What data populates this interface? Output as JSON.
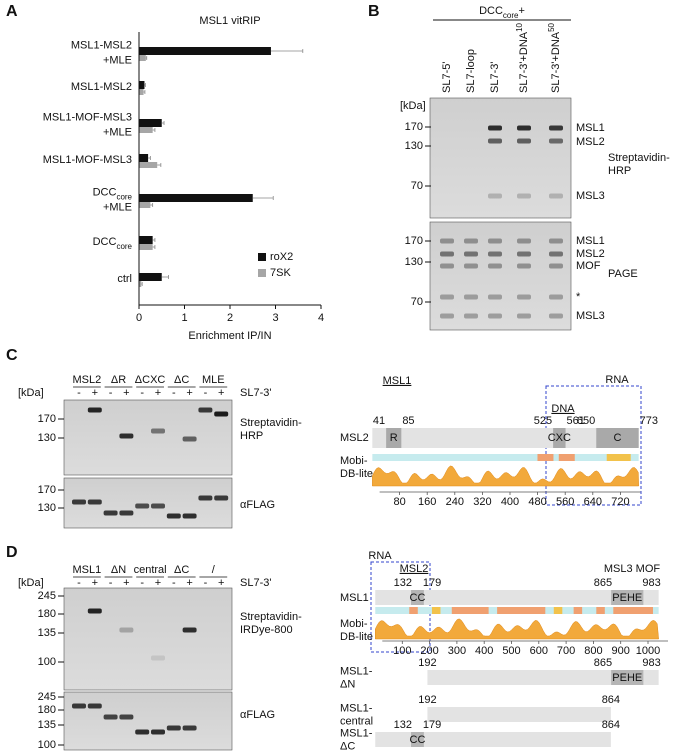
{
  "chart_data": {
    "type": "bar",
    "orientation": "horizontal",
    "title": "MSL1 vitRIP",
    "x_label": "Enrichment IP/IN",
    "categories": [
      [
        "MSL1-MSL2",
        "+MLE"
      ],
      [
        "MSL1-MSL2"
      ],
      [
        "MSL1-MOF-MSL3",
        "+MLE"
      ],
      [
        "MSL1-MOF-MSL3"
      ],
      [
        {
          "text": "DCC",
          "sub": "core"
        },
        "+MLE"
      ],
      [
        {
          "text": "DCC",
          "sub": "core"
        }
      ],
      [
        "ctrl"
      ]
    ],
    "series": [
      {
        "name": "roX2",
        "color": "#111111",
        "values": [
          2.9,
          0.12,
          0.5,
          0.2,
          2.5,
          0.3,
          0.5
        ],
        "errors": [
          0.7,
          0.02,
          0.05,
          0.05,
          0.45,
          0.05,
          0.15
        ]
      },
      {
        "name": "7SK",
        "color": "#a6a6a6",
        "values": [
          0.15,
          0.1,
          0.3,
          0.4,
          0.25,
          0.3,
          0.05
        ],
        "errors": [
          0.02,
          0.03,
          0.05,
          0.08,
          0.05,
          0.05,
          0.02
        ]
      }
    ],
    "xlim": [
      0,
      4
    ],
    "xticks": [
      0,
      1,
      2,
      3,
      4
    ],
    "legend": "lower right"
  },
  "panel_labels": [
    "A",
    "B",
    "C",
    "D"
  ],
  "panel_b": {
    "header": {
      "text": "DCC",
      "sub": "core",
      "suffix": "+"
    },
    "lanes": [
      [
        "SL7-5'"
      ],
      [
        "SL7-loop"
      ],
      [
        "SL7-3'"
      ],
      [
        "SL7-3'+DNA",
        "10"
      ],
      [
        "SL7-3'+DNA",
        "50"
      ]
    ],
    "unit": "[kDa]",
    "blots": [
      {
        "markers": [
          170,
          130,
          70
        ],
        "bands": [
          "MSL1",
          "MSL2",
          "MSL3"
        ],
        "detection": [
          "Streptavidin-",
          "HRP"
        ]
      },
      {
        "markers": [
          170,
          130,
          70
        ],
        "bands": [
          "MSL1",
          "MSL2",
          "MOF",
          "*",
          "MSL3"
        ],
        "detection": [
          "PAGE"
        ]
      }
    ]
  },
  "panel_c": {
    "groups": [
      "MSL2",
      "ΔR",
      "ΔCXC",
      "ΔC",
      "MLE"
    ],
    "lanes": [
      "-",
      "+",
      "-",
      "+",
      "-",
      "+",
      "-",
      "+",
      "-",
      "+"
    ],
    "condition": "SL7-3'",
    "unit": "[kDa]",
    "blots": [
      {
        "markers": [
          170,
          130
        ],
        "detection": [
          "Streptavidin-",
          "HRP"
        ]
      },
      {
        "markers": [
          170,
          130
        ],
        "detection": [
          "αFLAG"
        ]
      }
    ],
    "domains": {
      "annotations": {
        "rna": "RNA",
        "msl1": "MSL1",
        "dna": "DNA"
      },
      "protein": "MSL2",
      "positions": [
        41,
        85,
        525,
        561,
        650,
        773
      ],
      "boxes": [
        "R",
        "CXC",
        "C"
      ],
      "track": [
        "Mobi-",
        "DB-lite"
      ],
      "ticks": [
        80,
        160,
        240,
        320,
        400,
        480,
        560,
        640,
        720
      ]
    }
  },
  "panel_d": {
    "groups": [
      "MSL1",
      "ΔN",
      "central",
      "ΔC",
      "/"
    ],
    "lanes": [
      "-",
      "+",
      "-",
      "+",
      "-",
      "+",
      "-",
      "+",
      "-",
      "+"
    ],
    "condition": "SL7-3'",
    "unit": "[kDa]",
    "blots": [
      {
        "markers": [
          245,
          180,
          135,
          100
        ],
        "detection": [
          "Streptavidin-",
          "IRDye-800"
        ]
      },
      {
        "markers": [
          245,
          180,
          135,
          100
        ],
        "detection": [
          "αFLAG"
        ]
      }
    ],
    "domains": {
      "annotations": {
        "rna": "RNA",
        "msl2": "MSL2",
        "msl3_mof": "MSL3 MOF"
      },
      "track": [
        "Mobi-",
        "DB-lite"
      ],
      "ticks": [
        100,
        200,
        300,
        400,
        500,
        600,
        700,
        800,
        900,
        1000
      ],
      "constructs": [
        {
          "name": [
            "MSL1"
          ],
          "positions": [
            132,
            179,
            865,
            983
          ],
          "boxes": [
            "CC",
            "PEHE"
          ]
        },
        {
          "name": [
            "MSL1-",
            "ΔN"
          ],
          "positions": [
            192,
            865,
            983
          ],
          "boxes": [
            "PEHE"
          ]
        },
        {
          "name": [
            "MSL1-",
            "central"
          ],
          "positions": [
            192,
            864
          ],
          "boxes": []
        },
        {
          "name": [
            "MSL1-",
            "ΔC"
          ],
          "positions": [
            132,
            179,
            864
          ],
          "boxes": [
            "CC"
          ]
        }
      ]
    }
  }
}
